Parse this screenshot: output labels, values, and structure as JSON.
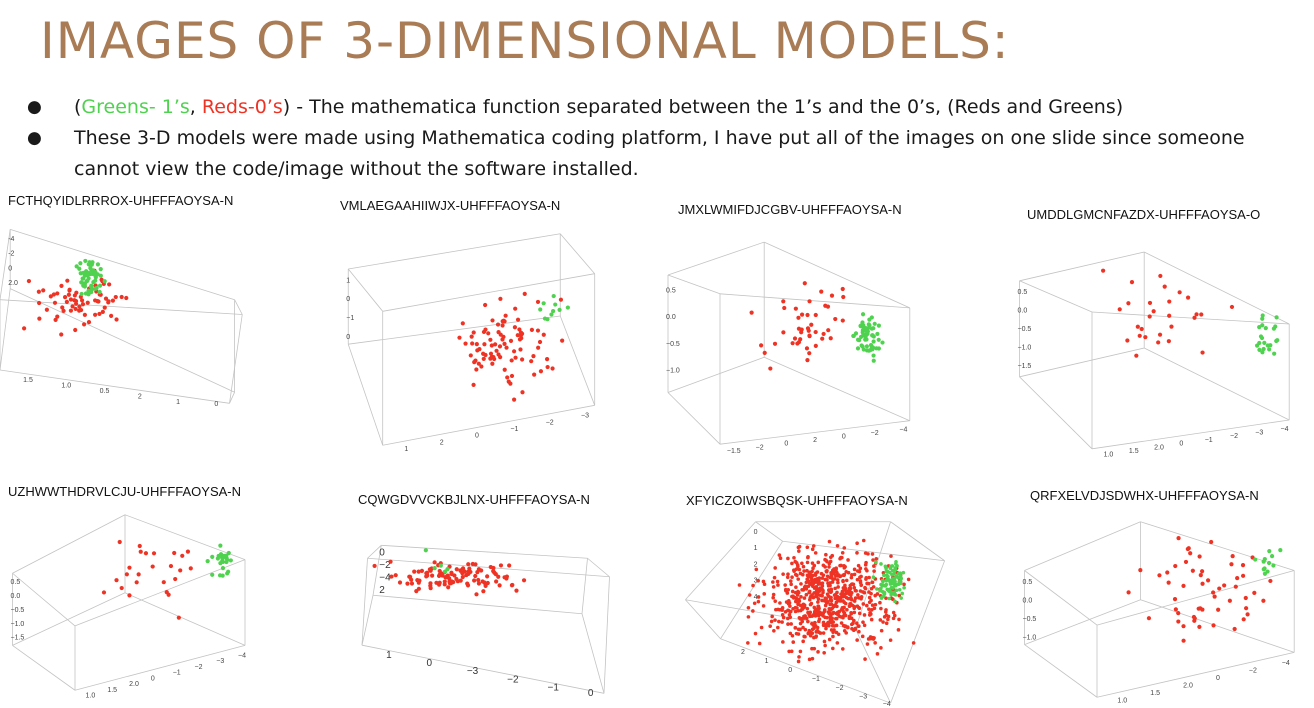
{
  "title": "IMAGES OF 3-DIMENSIONAL MODELS:",
  "bullets": {
    "b1": {
      "open": "(",
      "greens": "Greens- 1’s",
      "comma": ",",
      "reds": "Reds-0’s",
      "rest": ") - The mathematica function separated between the 1’s and the 0’s, (Reds and Greens)"
    },
    "b2": "These 3-D models were made using Mathematica coding platform, I have put all of the images on one slide since someone cannot view the code/image without the software installed."
  },
  "colors": {
    "title": "#a97c56",
    "green": "#4fd24f",
    "red": "#ee3324",
    "box": "#c3c3c3"
  },
  "panels": [
    {
      "label": "FCTHQYIDLRRROX-UHFFFAOYSA-N",
      "ticks": [
        "-4",
        "-2",
        "0",
        "2.0",
        "1.5",
        "1.0",
        "0.5",
        "2",
        "1",
        "0"
      ]
    },
    {
      "label": "VMLAEGAAHIIWJX-UHFFFAOYSA-N",
      "ticks": [
        "1",
        "0",
        "−1",
        "0",
        "1",
        "2",
        "0",
        "−1",
        "−2",
        "−3"
      ]
    },
    {
      "label": "JMXLWMIFDJCGBV-UHFFFAOYSA-N",
      "ticks": [
        "0.5",
        "0.0",
        "−0.5",
        "−1.0",
        "−1.5",
        "−2",
        "0",
        "2",
        "0",
        "−2",
        "−4"
      ]
    },
    {
      "label": "UMDDLGMCNFAZDX-UHFFFAOYSA-O",
      "ticks": [
        "0.5",
        "0.0",
        "−0.5",
        "−1.0",
        "−1.5",
        "1.0",
        "1.5",
        "2.0",
        "0",
        "−1",
        "−2",
        "−3",
        "−4"
      ]
    },
    {
      "label": "UZHWWTHDRVLCJU-UHFFFAOYSA-N",
      "ticks": [
        "0.5",
        "0.0",
        "−0.5",
        "−1.0",
        "−1.5",
        "1.0",
        "1.5",
        "2.0",
        "0",
        "−1",
        "−2",
        "−3",
        "−4"
      ]
    },
    {
      "label": "CQWGDVVCKBJLNX-UHFFFAOYSA-N",
      "ticks": [
        "0",
        "−2",
        "−4",
        "2",
        "1",
        "0",
        "−3",
        "−2",
        "−1",
        "0"
      ]
    },
    {
      "label": "XFYICZOIWSBQSK-UHFFFAOYSA-N",
      "ticks": [
        "0",
        "1",
        "2",
        "3",
        "4",
        "2",
        "1",
        "0",
        "−1",
        "−2",
        "−3",
        "−4"
      ]
    },
    {
      "label": "QRFXELVDJSDWHX-UHFFFAOYSA-N",
      "ticks": [
        "0.5",
        "0.0",
        "−0.5",
        "−1.0",
        "1.0",
        "1.5",
        "2.0",
        "0",
        "−2",
        "−4"
      ]
    }
  ]
}
